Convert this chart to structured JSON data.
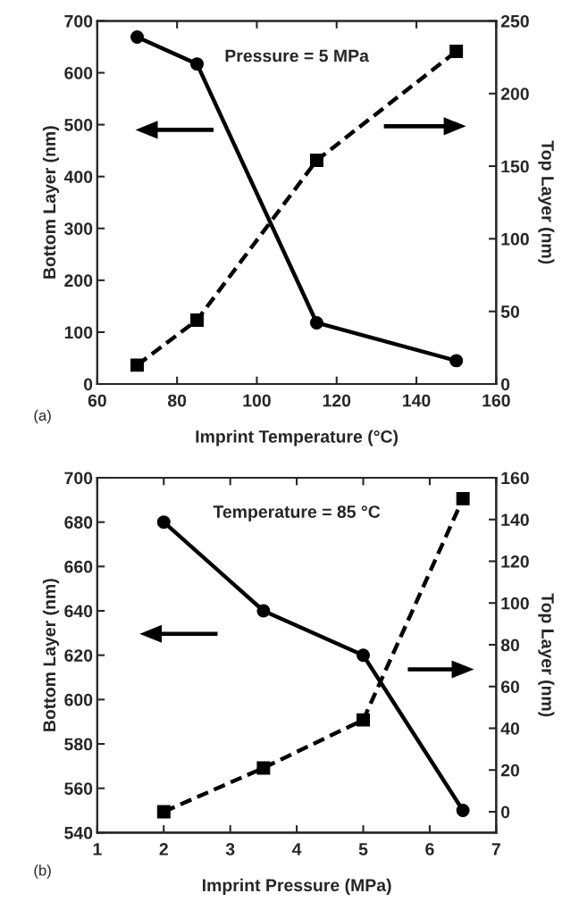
{
  "chart_data": [
    {
      "type": "line",
      "xlabel": "Imprint Temperature (°C)",
      "ylabel": "Bottom Layer (nm)",
      "y2label": "Top Layer (nm)",
      "x": [
        70,
        85,
        115,
        150
      ],
      "series": [
        {
          "color": "#000000",
          "values": [
            669,
            617,
            118,
            45
          ],
          "marker": "circle",
          "line_style": "solid"
        },
        {
          "color": "#000000",
          "values": [
            13,
            44,
            154,
            229
          ],
          "marker": "square",
          "line_style": "dashed",
          "axis": "y2"
        }
      ],
      "xlim": [
        60,
        160
      ],
      "xticks": [
        60,
        80,
        100,
        120,
        140,
        160
      ],
      "ylim": [
        0,
        700
      ],
      "yticks": [
        0,
        100,
        200,
        300,
        400,
        500,
        600,
        700
      ],
      "y2lim": [
        0,
        250
      ],
      "y2ticks": [
        0,
        50,
        100,
        150,
        200,
        250
      ],
      "annotations": [
        "Pressure = 5 MPa",
        "(a)"
      ],
      "grid": false,
      "legend": false
    },
    {
      "type": "line",
      "xlabel": "Imprint Pressure (MPa)",
      "ylabel": "Bottom Layer (nm)",
      "y2label": "Top Layer (nm)",
      "x": [
        2,
        3.5,
        5,
        6.5
      ],
      "series": [
        {
          "color": "#000000",
          "values": [
            680,
            640,
            620,
            550
          ],
          "marker": "circle",
          "line_style": "solid"
        },
        {
          "color": "#000000",
          "values": [
            0,
            21,
            44,
            150
          ],
          "marker": "square",
          "line_style": "dashed",
          "axis": "y2"
        }
      ],
      "xlim": [
        1,
        7
      ],
      "xticks": [
        1,
        2,
        3,
        4,
        5,
        6,
        7
      ],
      "ylim": [
        540,
        700
      ],
      "yticks": [
        540,
        560,
        580,
        600,
        620,
        640,
        660,
        680,
        700
      ],
      "y2lim": [
        -10,
        160
      ],
      "y2ticks": [
        0,
        20,
        40,
        60,
        80,
        100,
        120,
        140,
        160
      ],
      "annotations": [
        "Temperature = 85 °C",
        "(b)"
      ],
      "grid": false,
      "legend": false
    }
  ]
}
